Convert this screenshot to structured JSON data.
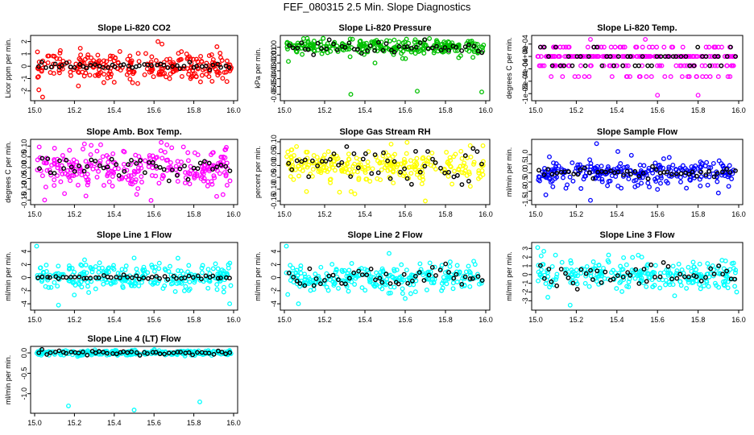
{
  "title": "FEF_080315  2.5 Min. Slope Diagnostics",
  "chart_data": [
    {
      "type": "scatter",
      "title": "Slope Li-820 CO2",
      "ylabel": "Licor ppm per min.",
      "color": "#ff0000",
      "xlim": [
        15.0,
        16.0
      ],
      "ylim": [
        -2.6,
        2.3
      ],
      "xticks": [
        "15.0",
        "15.2",
        "15.4",
        "15.6",
        "15.8",
        "16.0"
      ],
      "yticks": [
        {
          "v": -2,
          "label": "-2"
        },
        {
          "v": -1,
          "label": "-1"
        },
        {
          "v": 0,
          "label": "0"
        },
        {
          "v": 1,
          "label": "1"
        },
        {
          "v": 2,
          "label": "2"
        }
      ],
      "spread": 0.55,
      "black_spread": 0.12,
      "outliers": [
        [
          15.04,
          -2.5
        ],
        [
          15.62,
          2.0
        ],
        [
          15.64,
          1.8
        ],
        [
          15.4,
          -1.3
        ],
        [
          15.22,
          -1.6
        ]
      ]
    },
    {
      "type": "scatter",
      "title": "Slope Li-820 Pressure",
      "ylabel": "kPa per min.",
      "color": "#00c000",
      "xlim": [
        15.0,
        16.0
      ],
      "ylim": [
        -0.065,
        0.012
      ],
      "xticks": [
        "15.0",
        "15.2",
        "15.4",
        "15.6",
        "15.8",
        "16.0"
      ],
      "yticks": [
        {
          "v": 0,
          "label": "0.00"
        },
        {
          "v": -0.01,
          "label": "-0.01"
        },
        {
          "v": -0.02,
          "label": "-0.02"
        },
        {
          "v": -0.03,
          "label": "-0.03"
        },
        {
          "v": -0.04,
          "label": "-0.04"
        },
        {
          "v": -0.05,
          "label": "-0.05"
        },
        {
          "v": -0.06,
          "label": "-0.06"
        }
      ],
      "spread": 0.005,
      "black_spread": 0.004,
      "outliers": [
        [
          15.33,
          -0.06
        ],
        [
          15.66,
          -0.056
        ],
        [
          15.98,
          -0.057
        ],
        [
          15.02,
          -0.018
        ],
        [
          15.45,
          -0.02
        ]
      ]
    },
    {
      "type": "scatter",
      "title": "Slope Li-820 Temp.",
      "ylabel": "degrees C per min.",
      "color": "#ff00ff",
      "xlim": [
        15.0,
        16.0
      ],
      "ylim": [
        -0.00135,
        0.0006
      ],
      "xticks": [
        "15.0",
        "15.2",
        "15.4",
        "15.6",
        "15.8",
        "16.0"
      ],
      "yticks": [
        {
          "v": 0.0004,
          "label": "4e-04"
        },
        {
          "v": 0,
          "label": "0e+00"
        },
        {
          "v": -0.0004,
          "label": "-4e-04"
        },
        {
          "v": -0.0008,
          "label": "-8e-04"
        },
        {
          "v": -0.0012,
          "label": "-1e-03"
        }
      ],
      "discrete": [
        0.0003,
        0,
        -0.0003,
        -0.00065,
        -0.0012
      ],
      "outliers": [
        [
          15.27,
          0.00055
        ],
        [
          15.54,
          0.00055
        ],
        [
          15.6,
          -0.00125
        ],
        [
          15.8,
          -0.00125
        ]
      ]
    },
    {
      "type": "scatter",
      "title": "Slope Amb. Box Temp.",
      "ylabel": "degrees C per min.",
      "color": "#ff00ff",
      "xlim": [
        15.0,
        16.0
      ],
      "ylim": [
        -0.16,
        0.12
      ],
      "xticks": [
        "15.0",
        "15.2",
        "15.4",
        "15.6",
        "15.8",
        "16.0"
      ],
      "yticks": [
        {
          "v": 0.1,
          "label": "0.10"
        },
        {
          "v": 0.05,
          "label": "0.05"
        },
        {
          "v": 0,
          "label": "0.00"
        },
        {
          "v": -0.05,
          "label": "-0.05"
        },
        {
          "v": -0.1,
          "label": "-0.10"
        },
        {
          "v": -0.15,
          "label": "-0.15"
        }
      ],
      "spread": 0.045,
      "black_spread": 0.025,
      "outliers": [
        [
          15.05,
          -0.15
        ],
        [
          15.15,
          -0.12
        ],
        [
          15.25,
          0.11
        ],
        [
          15.1,
          0.09
        ]
      ]
    },
    {
      "type": "scatter",
      "title": "Slope Gas Stream RH",
      "ylabel": "percent per min.",
      "color": "#ffff00",
      "xlim": [
        15.0,
        16.0
      ],
      "ylim": [
        -0.155,
        0.1
      ],
      "xticks": [
        "15.0",
        "15.2",
        "15.4",
        "15.6",
        "15.8",
        "16.0"
      ],
      "yticks": [
        {
          "v": 0.1,
          "label": "0.10"
        },
        {
          "v": 0.05,
          "label": "0.05"
        },
        {
          "v": 0,
          "label": "0.00"
        },
        {
          "v": -0.05,
          "label": "-0.05"
        },
        {
          "v": -0.1,
          "label": "-0.10"
        },
        {
          "v": -0.15,
          "label": "-0.15"
        }
      ],
      "spread": 0.035,
      "black_spread": 0.04,
      "outliers": [
        [
          15.7,
          -0.15
        ],
        [
          15.53,
          0.09
        ],
        [
          15.35,
          -0.12
        ],
        [
          15.11,
          -0.11
        ]
      ]
    },
    {
      "type": "scatter",
      "title": "Slope Sample Flow",
      "ylabel": "ml/min per min.",
      "color": "#0000ff",
      "xlim": [
        15.0,
        16.0
      ],
      "ylim": [
        -1.6,
        1.7
      ],
      "xticks": [
        "15.0",
        "15.2",
        "15.4",
        "15.6",
        "15.8",
        "16.0"
      ],
      "yticks": [
        {
          "v": 1,
          "label": "1.0"
        },
        {
          "v": 0.5,
          "label": "0.5"
        },
        {
          "v": 0,
          "label": "0.0"
        },
        {
          "v": -0.5,
          "label": "-0.5"
        },
        {
          "v": -1,
          "label": "-1.0"
        },
        {
          "v": -1.5,
          "label": "-1.5"
        }
      ],
      "spread": 0.35,
      "black_spread": 0.12,
      "outliers": [
        [
          15.3,
          1.6
        ],
        [
          15.27,
          -1.5
        ],
        [
          15.05,
          -1.2
        ],
        [
          15.6,
          -0.9
        ],
        [
          15.9,
          -1.1
        ]
      ]
    },
    {
      "type": "scatter",
      "title": "Slope Line 1 Flow",
      "ylabel": "ml/min per min.",
      "color": "#00ffff",
      "xlim": [
        15.0,
        16.0
      ],
      "ylim": [
        -4.6,
        5.0
      ],
      "xticks": [
        "15.0",
        "15.2",
        "15.4",
        "15.6",
        "15.8",
        "16.0"
      ],
      "yticks": [
        {
          "v": 4,
          "label": "4"
        },
        {
          "v": 2,
          "label": "2"
        },
        {
          "v": 0,
          "label": "0"
        },
        {
          "v": -2,
          "label": "-2"
        },
        {
          "v": -4,
          "label": "-4"
        }
      ],
      "spread": 1.0,
      "black_spread": 0.15,
      "outliers": [
        [
          15.01,
          4.8
        ],
        [
          15.12,
          -4.2
        ],
        [
          15.98,
          -4.0
        ],
        [
          15.5,
          3.0
        ]
      ]
    },
    {
      "type": "scatter",
      "title": "Slope Line 2 Flow",
      "ylabel": "ml/min per min.",
      "color": "#00ffff",
      "xlim": [
        15.0,
        16.0
      ],
      "ylim": [
        -4.6,
        5.0
      ],
      "xticks": [
        "15.0",
        "15.2",
        "15.4",
        "15.6",
        "15.8",
        "16.0"
      ],
      "yticks": [
        {
          "v": 4,
          "label": "4"
        },
        {
          "v": 2,
          "label": "2"
        },
        {
          "v": 0,
          "label": "0"
        },
        {
          "v": -2,
          "label": "-2"
        },
        {
          "v": -4,
          "label": "-4"
        }
      ],
      "spread": 1.0,
      "black_spread": 0.8,
      "outliers": [
        [
          15.01,
          4.8
        ],
        [
          15.07,
          -4.0
        ],
        [
          15.52,
          3.7
        ],
        [
          15.6,
          -3.2
        ]
      ]
    },
    {
      "type": "scatter",
      "title": "Slope Line 3 Flow",
      "ylabel": "ml/min per min.",
      "color": "#00ffff",
      "xlim": [
        15.0,
        16.0
      ],
      "ylim": [
        -3.8,
        3.4
      ],
      "xticks": [
        "15.0",
        "15.2",
        "15.4",
        "15.6",
        "15.8",
        "16.0"
      ],
      "yticks": [
        {
          "v": 3,
          "label": "3"
        },
        {
          "v": 2,
          "label": "2"
        },
        {
          "v": 1,
          "label": "1"
        },
        {
          "v": 0,
          "label": "0"
        },
        {
          "v": -1,
          "label": "-1"
        },
        {
          "v": -2,
          "label": "-2"
        },
        {
          "v": -3,
          "label": "-3"
        }
      ],
      "spread": 0.9,
      "black_spread": 0.6,
      "outliers": [
        [
          15.01,
          3.1
        ],
        [
          15.17,
          -3.5
        ],
        [
          15.06,
          -2.6
        ],
        [
          15.99,
          -2.0
        ]
      ]
    },
    {
      "type": "scatter",
      "title": "Slope Line 4 (LT) Flow",
      "ylabel": "ml/min per min.",
      "color": "#00ffff",
      "xlim": [
        15.0,
        16.0
      ],
      "ylim": [
        -1.42,
        0.1
      ],
      "xticks": [
        "15.0",
        "15.2",
        "15.4",
        "15.6",
        "15.8",
        "16.0"
      ],
      "yticks": [
        {
          "v": 0,
          "label": "0.0"
        },
        {
          "v": -0.5,
          "label": "-0.5"
        },
        {
          "v": -1,
          "label": "-1.0"
        }
      ],
      "spread": 0.03,
      "black_spread": 0.03,
      "outliers": [
        [
          15.17,
          -1.3
        ],
        [
          15.5,
          -1.4
        ],
        [
          15.83,
          -1.2
        ]
      ]
    }
  ]
}
